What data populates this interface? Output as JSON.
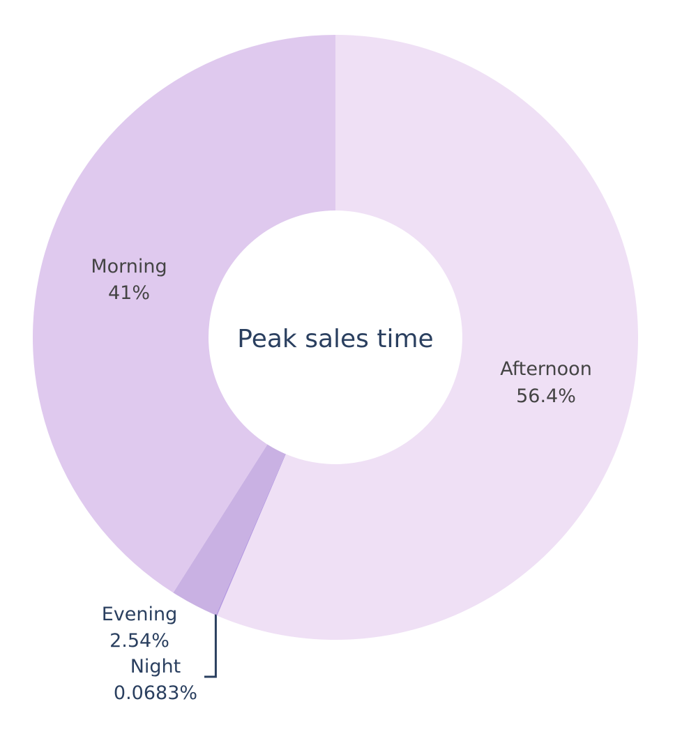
{
  "chart_data": {
    "type": "pie",
    "hole": true,
    "center_title": "Peak sales time",
    "direction": "clockwise",
    "start": "top",
    "slices": [
      {
        "label": "Afternoon",
        "percent_label": "56.4%",
        "value": 56.4,
        "color": "#efe0f5"
      },
      {
        "label": "Night",
        "percent_label": "0.0683%",
        "value": 0.0683,
        "color": "#b69ae0"
      },
      {
        "label": "Evening",
        "percent_label": "2.54%",
        "value": 2.54,
        "color": "#c9b1e3"
      },
      {
        "label": "Morning",
        "percent_label": "41%",
        "value": 41.0,
        "color": "#dfc9ee"
      }
    ],
    "leader_line_color": "#2a3f5f"
  }
}
